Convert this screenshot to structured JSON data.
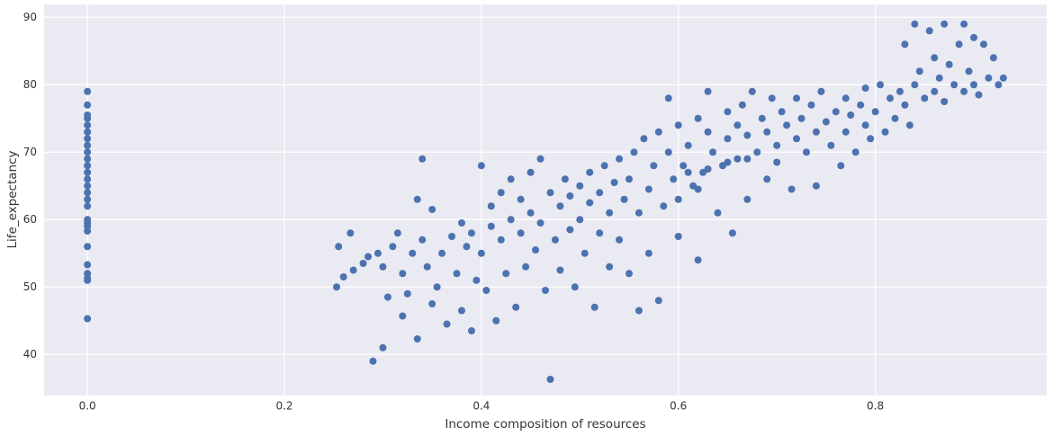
{
  "chart_data": {
    "type": "scatter",
    "xlabel": "Income composition of resources",
    "ylabel": "Life_expectancy",
    "color": "#4c72b0",
    "xlim": [
      -0.044,
      0.974
    ],
    "ylim": [
      33.9,
      91.9
    ],
    "xticks": [
      {
        "value": 0,
        "label": "0.0"
      },
      0.2,
      0.4,
      0.6,
      0.8
    ],
    "yticks": [
      40,
      50,
      60,
      70,
      80,
      90
    ],
    "grid": true,
    "x": [
      0,
      0,
      0,
      0,
      0,
      0,
      0,
      0,
      0,
      0,
      0,
      0,
      0,
      0,
      0,
      0,
      0,
      0,
      0,
      0,
      0,
      0,
      0,
      0,
      0,
      0,
      0,
      0.253,
      0.255,
      0.26,
      0.267,
      0.27,
      0.28,
      0.285,
      0.29,
      0.295,
      0.3,
      0.3,
      0.305,
      0.31,
      0.315,
      0.32,
      0.32,
      0.325,
      0.33,
      0.335,
      0.335,
      0.34,
      0.34,
      0.345,
      0.35,
      0.35,
      0.355,
      0.36,
      0.365,
      0.37,
      0.375,
      0.38,
      0.38,
      0.385,
      0.39,
      0.39,
      0.395,
      0.4,
      0.4,
      0.405,
      0.41,
      0.41,
      0.415,
      0.42,
      0.42,
      0.425,
      0.43,
      0.43,
      0.435,
      0.44,
      0.44,
      0.445,
      0.45,
      0.45,
      0.455,
      0.46,
      0.46,
      0.465,
      0.47,
      0.47,
      0.475,
      0.48,
      0.48,
      0.485,
      0.49,
      0.49,
      0.495,
      0.5,
      0.5,
      0.505,
      0.51,
      0.51,
      0.515,
      0.52,
      0.52,
      0.525,
      0.53,
      0.53,
      0.535,
      0.54,
      0.54,
      0.545,
      0.55,
      0.55,
      0.555,
      0.56,
      0.56,
      0.565,
      0.57,
      0.57,
      0.575,
      0.58,
      0.58,
      0.585,
      0.59,
      0.59,
      0.595,
      0.6,
      0.6,
      0.605,
      0.61,
      0.615,
      0.62,
      0.62,
      0.625,
      0.63,
      0.63,
      0.635,
      0.64,
      0.645,
      0.65,
      0.65,
      0.655,
      0.66,
      0.66,
      0.665,
      0.67,
      0.67,
      0.675,
      0.68,
      0.685,
      0.69,
      0.69,
      0.695,
      0.7,
      0.7,
      0.705,
      0.71,
      0.715,
      0.72,
      0.72,
      0.725,
      0.73,
      0.735,
      0.74,
      0.74,
      0.745,
      0.75,
      0.755,
      0.76,
      0.765,
      0.77,
      0.77,
      0.775,
      0.78,
      0.785,
      0.79,
      0.79,
      0.795,
      0.8,
      0.805,
      0.81,
      0.815,
      0.82,
      0.825,
      0.83,
      0.83,
      0.835,
      0.84,
      0.84,
      0.845,
      0.85,
      0.855,
      0.86,
      0.86,
      0.865,
      0.87,
      0.87,
      0.875,
      0.88,
      0.885,
      0.89,
      0.89,
      0.895,
      0.9,
      0.9,
      0.905,
      0.91,
      0.915,
      0.92,
      0.925,
      0.93,
      0.61,
      0.63,
      0.65,
      0.67,
      0.6,
      0.62
    ],
    "values": [
      45.3,
      51,
      51.3,
      52,
      53.3,
      56,
      58.3,
      59,
      59.5,
      60,
      62,
      63,
      64,
      65,
      66,
      67,
      68,
      69,
      70,
      71,
      72,
      73,
      74,
      75,
      75.5,
      77,
      79,
      50,
      56,
      51.5,
      58,
      52.5,
      53.5,
      54.5,
      39,
      55,
      41,
      53,
      48.5,
      56,
      58,
      45.7,
      52,
      49,
      55,
      63,
      42.3,
      69,
      57,
      53,
      47.5,
      61.5,
      50,
      55,
      44.5,
      57.5,
      52,
      59.5,
      46.5,
      56,
      43.5,
      58,
      51,
      68,
      55,
      49.5,
      59,
      62,
      45,
      57,
      64,
      52,
      60,
      66,
      47,
      58,
      63,
      53,
      67,
      61,
      55.5,
      59.5,
      69,
      49.5,
      36.3,
      64,
      57,
      62,
      52.5,
      66,
      58.5,
      63.5,
      50,
      65,
      60,
      55,
      67,
      62.5,
      47,
      64,
      58,
      68,
      53,
      61,
      65.5,
      57,
      69,
      63,
      66,
      52,
      70,
      61,
      46.5,
      72,
      64.5,
      55,
      68,
      73,
      48,
      62,
      70,
      78,
      66,
      74,
      57.5,
      68,
      71,
      65,
      75,
      54,
      67,
      73,
      79,
      70,
      61,
      68,
      76,
      72,
      58,
      74,
      69,
      77,
      63,
      72.5,
      79,
      70,
      75,
      66,
      73,
      78,
      71,
      68.5,
      76,
      74,
      64.5,
      72,
      78,
      75,
      70,
      77,
      73,
      65,
      79,
      74.5,
      71,
      76,
      68,
      78,
      73,
      75.5,
      70,
      77,
      74,
      79.5,
      72,
      76,
      80,
      73,
      78,
      75,
      79,
      86,
      77,
      74,
      89,
      80,
      82,
      78,
      88,
      79,
      84,
      81,
      89,
      77.5,
      83,
      80,
      86,
      89,
      79,
      82,
      87,
      80,
      78.5,
      86,
      81,
      84,
      80,
      81,
      67,
      67.5,
      68.5,
      69,
      63,
      64.5
    ]
  }
}
